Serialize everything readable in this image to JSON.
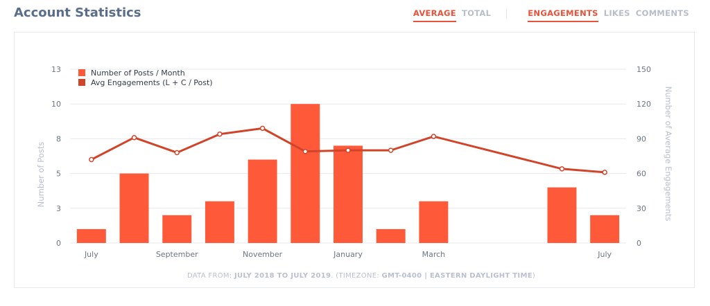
{
  "header": {
    "title": "Account Statistics",
    "tabs_mode": [
      {
        "label": "AVERAGE",
        "active": true
      },
      {
        "label": "TOTAL",
        "active": false
      }
    ],
    "tabs_metric": [
      {
        "label": "ENGAGEMENTS",
        "active": true
      },
      {
        "label": "LIKES",
        "active": false
      },
      {
        "label": "COMMENTS",
        "active": false
      }
    ]
  },
  "footer": {
    "prefix": "DATA FROM: ",
    "range": "JULY 2018 TO JULY 2019",
    "mid": ". (TIMEZONE: ",
    "tz": "GMT-0400 | EASTERN DAYLIGHT TIME",
    "suffix": ")"
  },
  "colors": {
    "bar": "#fe5a3a",
    "line": "#d0452a",
    "grid": "#e6e8ee",
    "axis_text": "#6b7487",
    "axis_title": "#b9bfd0",
    "accent": "#e8523a"
  },
  "chart_data": {
    "type": "bar",
    "categories": [
      "Jul 2018",
      "Aug 2018",
      "Sep 2018",
      "Oct 2018",
      "Nov 2018",
      "Dec 2018",
      "Jan 2019",
      "Feb 2019",
      "Mar 2019",
      "Apr 2019",
      "May 2019",
      "Jun 2019",
      "Jul 2019"
    ],
    "x_tick_labels": [
      {
        "label": "July",
        "index": 0
      },
      {
        "label": "September",
        "index": 2
      },
      {
        "label": "November",
        "index": 4
      },
      {
        "label": "January",
        "index": 6
      },
      {
        "label": "March",
        "index": 8
      },
      {
        "label": "July",
        "index": 12
      }
    ],
    "series": [
      {
        "name": "Number of Posts / Month",
        "type": "bar",
        "axis": "left",
        "values": [
          1,
          5,
          2,
          3,
          6,
          10,
          7,
          1,
          3,
          null,
          null,
          4,
          2
        ]
      },
      {
        "name": "Avg Engagements (L + C / Post)",
        "type": "line",
        "axis": "right",
        "values": [
          72,
          91,
          78,
          94,
          99,
          79,
          80,
          80,
          92,
          null,
          null,
          64,
          61
        ]
      }
    ],
    "y_left": {
      "label": "Number of Posts",
      "ticks": [
        "0",
        "3",
        "5",
        "8",
        "10",
        "13"
      ],
      "range": [
        0,
        12.5
      ]
    },
    "y_right": {
      "label": "Number of Average Engagements",
      "ticks": [
        "0",
        "30",
        "60",
        "90",
        "120",
        "150"
      ],
      "range": [
        0,
        150
      ]
    },
    "legend_position": "top-left",
    "grid": true
  }
}
